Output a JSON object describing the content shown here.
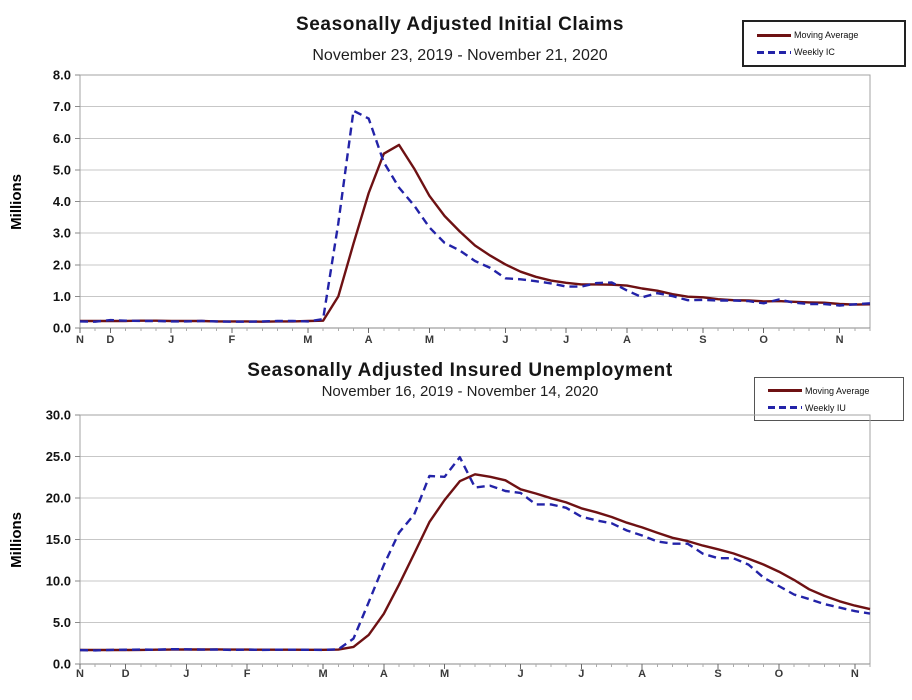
{
  "page": {
    "background": "#ffffff"
  },
  "chart_data": [
    {
      "type": "line",
      "title": "Seasonally Adjusted Initial Claims",
      "subtitle": "November 23, 2019 - November 21, 2020",
      "ylabel": "Millions",
      "unit": "Millions",
      "ylim": [
        0,
        8
      ],
      "ytick_step": 1,
      "grid": true,
      "legend_position": "top-right",
      "weeks": 53,
      "x_month_labels": [
        "N",
        "D",
        "J",
        "F",
        "M",
        "A",
        "M",
        "J",
        "J",
        "A",
        "S",
        "O",
        "N"
      ],
      "month_week_index": [
        0,
        2,
        6,
        10,
        15,
        19,
        23,
        28,
        32,
        36,
        41,
        45,
        50
      ],
      "series": [
        {
          "name": "Moving Average",
          "line_style": "solid",
          "color": "#6E1113",
          "values": [
            0.22,
            0.22,
            0.22,
            0.22,
            0.23,
            0.23,
            0.22,
            0.22,
            0.22,
            0.21,
            0.21,
            0.21,
            0.2,
            0.21,
            0.21,
            0.22,
            0.23,
            1.0,
            2.67,
            4.27,
            5.51,
            5.79,
            5.04,
            4.18,
            3.54,
            3.05,
            2.61,
            2.29,
            2.01,
            1.78,
            1.62,
            1.5,
            1.43,
            1.38,
            1.38,
            1.37,
            1.34,
            1.25,
            1.18,
            1.07,
            0.99,
            0.97,
            0.91,
            0.88,
            0.87,
            0.84,
            0.85,
            0.83,
            0.81,
            0.8,
            0.76,
            0.74,
            0.75
          ]
        },
        {
          "name": "Weekly IC",
          "line_style": "dashed",
          "color": "#2323A8",
          "values": [
            0.21,
            0.2,
            0.25,
            0.23,
            0.22,
            0.22,
            0.21,
            0.21,
            0.22,
            0.21,
            0.2,
            0.2,
            0.21,
            0.22,
            0.22,
            0.21,
            0.28,
            3.31,
            6.87,
            6.62,
            5.24,
            4.44,
            3.87,
            3.18,
            2.69,
            2.45,
            2.12,
            1.9,
            1.57,
            1.54,
            1.48,
            1.41,
            1.31,
            1.31,
            1.42,
            1.44,
            1.19,
            0.97,
            1.1,
            1.01,
            0.88,
            0.89,
            0.87,
            0.87,
            0.85,
            0.78,
            0.9,
            0.8,
            0.76,
            0.76,
            0.71,
            0.75,
            0.78
          ]
        }
      ]
    },
    {
      "type": "line",
      "title": "Seasonally Adjusted Insured Unemployment",
      "subtitle": "November 16, 2019 - November 14, 2020",
      "ylabel": "Millions",
      "unit": "Millions",
      "ylim": [
        0,
        30
      ],
      "ytick_step": 5,
      "grid": true,
      "legend_position": "top-right",
      "weeks": 53,
      "x_month_labels": [
        "N",
        "D",
        "J",
        "F",
        "M",
        "A",
        "M",
        "J",
        "J",
        "A",
        "S",
        "O",
        "N"
      ],
      "month_week_index": [
        0,
        3,
        7,
        11,
        16,
        20,
        24,
        29,
        33,
        37,
        42,
        46,
        51
      ],
      "series": [
        {
          "name": "Moving Average",
          "line_style": "solid",
          "color": "#6E1113",
          "values": [
            1.69,
            1.69,
            1.69,
            1.69,
            1.7,
            1.72,
            1.74,
            1.75,
            1.75,
            1.76,
            1.74,
            1.73,
            1.72,
            1.72,
            1.72,
            1.71,
            1.71,
            1.73,
            2.06,
            3.5,
            6.05,
            9.56,
            13.3,
            17.1,
            19.76,
            22.03,
            22.85,
            22.55,
            22.13,
            21.05,
            20.54,
            19.98,
            19.47,
            18.76,
            18.28,
            17.71,
            17.02,
            16.46,
            15.82,
            15.21,
            14.81,
            14.26,
            13.82,
            13.32,
            12.69,
            11.97,
            11.13,
            10.13,
            9.0,
            8.2,
            7.55,
            7.04,
            6.62
          ]
        },
        {
          "name": "Weekly IU",
          "line_style": "dashed",
          "color": "#2323A8",
          "values": [
            1.68,
            1.64,
            1.7,
            1.72,
            1.73,
            1.72,
            1.78,
            1.77,
            1.73,
            1.75,
            1.7,
            1.74,
            1.7,
            1.72,
            1.72,
            1.71,
            1.7,
            1.77,
            3.06,
            7.45,
            11.91,
            15.82,
            18.01,
            22.65,
            22.55,
            24.91,
            21.27,
            21.48,
            20.84,
            20.61,
            19.23,
            19.23,
            18.82,
            17.75,
            17.3,
            16.95,
            16.09,
            15.48,
            14.76,
            14.49,
            14.49,
            13.29,
            12.75,
            12.75,
            11.98,
            10.4,
            9.4,
            8.37,
            7.82,
            7.22,
            6.8,
            6.37,
            6.07
          ]
        }
      ]
    }
  ]
}
